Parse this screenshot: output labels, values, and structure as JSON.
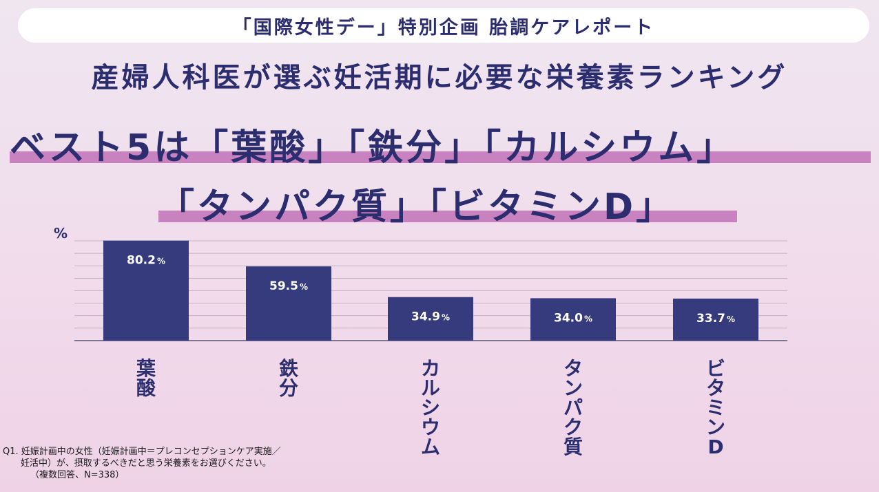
{
  "banner": "「国際女性デー」特別企画 胎調ケアレポート",
  "headline": "産婦人科医が選ぶ妊活期に必要な栄養素ランキング",
  "highlight_line1": "ベスト5は「葉酸」「鉄分」「カルシウム」",
  "highlight_line2": "「タンパク質」「ビタミンD」",
  "colors": {
    "bar": "#353b7c",
    "text": "#2b2d6e",
    "highlight": "#c982c0",
    "grid": "#b3a9b7"
  },
  "chart_data": {
    "type": "bar",
    "ylabel": "%",
    "categories": [
      "葉酸",
      "鉄分",
      "カルシウム",
      "タンパク質",
      "ビタミンD"
    ],
    "values": [
      80.2,
      59.5,
      34.9,
      34.0,
      33.7
    ],
    "value_labels": [
      "80.2",
      "59.5",
      "34.9",
      "34.0",
      "33.7"
    ],
    "value_suffix": "%",
    "ylim": [
      0,
      80
    ],
    "grid": true,
    "legend": "none"
  },
  "footnote": {
    "line1": "Q1. 妊娠計画中の女性（妊娠計画中＝プレコンセプションケア実施／",
    "line2": "妊活中）が、摂取するべきだと思う栄養素をお選びください。",
    "line3": "（複数回答、N=338）"
  }
}
